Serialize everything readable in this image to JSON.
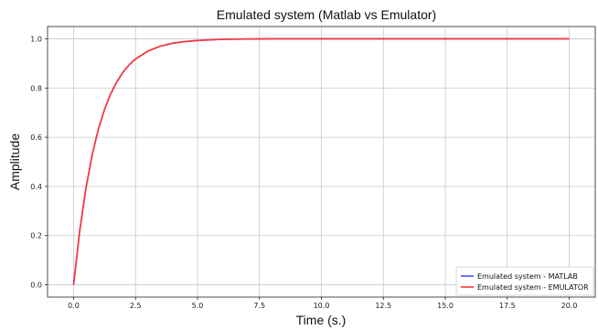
{
  "chart_data": {
    "type": "line",
    "title": "Emulated system (Matlab vs Emulator)",
    "xlabel": "Time (s.)",
    "ylabel": "Amplitude",
    "xlim": [
      -1.05,
      21.05
    ],
    "ylim": [
      -0.05,
      1.05
    ],
    "xticks": [
      0.0,
      2.5,
      5.0,
      7.5,
      10.0,
      12.5,
      15.0,
      17.5,
      20.0
    ],
    "yticks": [
      0.0,
      0.2,
      0.4,
      0.6,
      0.8,
      1.0
    ],
    "xtick_labels": [
      "0.0",
      "2.5",
      "5.0",
      "7.5",
      "10.0",
      "12.5",
      "15.0",
      "17.5",
      "20.0"
    ],
    "ytick_labels": [
      "0.0",
      "0.2",
      "0.4",
      "0.6",
      "0.8",
      "1.0"
    ],
    "grid": true,
    "legend_position": "bottom-right",
    "series": [
      {
        "name": "Emulated system - MATLAB",
        "color": "#4a4aff",
        "x": [
          0,
          0.25,
          0.5,
          0.75,
          1.0,
          1.25,
          1.5,
          1.75,
          2.0,
          2.25,
          2.5,
          3.0,
          3.5,
          4.0,
          4.5,
          5.0,
          6.0,
          7.0,
          8.0,
          10.0,
          12.5,
          15.0,
          17.5,
          20.0
        ],
        "y": [
          0,
          0.221,
          0.393,
          0.528,
          0.632,
          0.713,
          0.777,
          0.826,
          0.865,
          0.895,
          0.918,
          0.95,
          0.97,
          0.982,
          0.989,
          0.993,
          0.998,
          0.999,
          1.0,
          1.0,
          1.0,
          1.0,
          1.0,
          1.0
        ]
      },
      {
        "name": "Emulated system - EMULATOR",
        "color": "#ff3333",
        "x": [
          0,
          0.25,
          0.5,
          0.75,
          1.0,
          1.25,
          1.5,
          1.75,
          2.0,
          2.25,
          2.5,
          3.0,
          3.5,
          4.0,
          4.5,
          5.0,
          6.0,
          7.0,
          8.0,
          10.0,
          12.5,
          15.0,
          17.5,
          20.0
        ],
        "y": [
          0,
          0.221,
          0.393,
          0.528,
          0.632,
          0.713,
          0.777,
          0.826,
          0.865,
          0.895,
          0.918,
          0.95,
          0.97,
          0.982,
          0.989,
          0.993,
          0.998,
          0.999,
          1.0,
          1.0,
          1.0,
          1.0,
          1.0,
          1.0
        ]
      }
    ]
  }
}
